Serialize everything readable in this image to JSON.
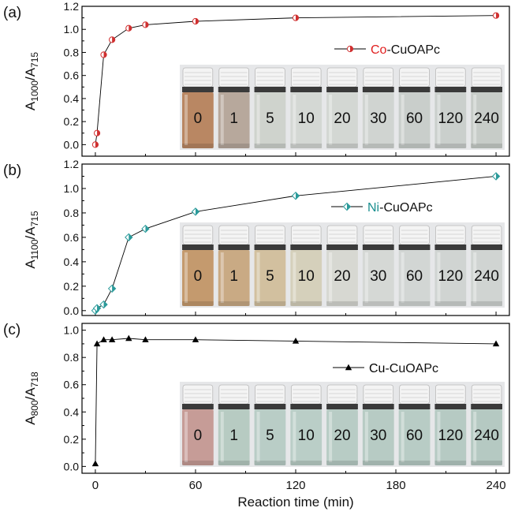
{
  "figure": {
    "xlabel": "Reaction time (min)",
    "x_ticks": [
      0,
      60,
      120,
      180,
      240
    ],
    "xlim": [
      -8,
      248
    ]
  },
  "chart_data": [
    {
      "type": "line",
      "panel_label": "(a)",
      "ylabel_main": "A",
      "ylabel_sub1": "1000",
      "ylabel_sep": "/A",
      "ylabel_sub2": "715",
      "ylim": [
        -0.1,
        1.2
      ],
      "y_ticks": [
        "0.0",
        "0.2",
        "0.4",
        "0.6",
        "0.8",
        "1.0",
        "1.2"
      ],
      "marker": "half-circle",
      "series": [
        {
          "legend_metal": "Co",
          "legend_rest": "-CuOAPc",
          "metal_color": "#e02020",
          "marker_color": "#d03030",
          "x": [
            0,
            1,
            5,
            10,
            20,
            30,
            60,
            120,
            240
          ],
          "y": [
            0.0,
            0.1,
            0.78,
            0.91,
            1.01,
            1.04,
            1.07,
            1.1,
            1.12
          ]
        }
      ],
      "vial_labels": [
        "0",
        "1",
        "5",
        "10",
        "20",
        "30",
        "60",
        "120",
        "240"
      ],
      "vial_colors": [
        "#b98763",
        "#b7a89c",
        "#cfd3cd",
        "#d4d8d4",
        "#d3d7d3",
        "#d0d4d1",
        "#c9cecb",
        "#cacfcc",
        "#c7ccc8"
      ]
    },
    {
      "type": "line",
      "panel_label": "(b)",
      "ylabel_main": "A",
      "ylabel_sub1": "1100",
      "ylabel_sep": "/A",
      "ylabel_sub2": "715",
      "ylim": [
        -0.04,
        1.2
      ],
      "y_ticks": [
        "0.0",
        "0.2",
        "0.4",
        "0.6",
        "0.8",
        "1.0",
        "1.2"
      ],
      "marker": "half-diamond",
      "series": [
        {
          "legend_metal": "Ni",
          "legend_rest": "-CuOAPc",
          "metal_color": "#1a8f8f",
          "marker_color": "#2a9a9a",
          "x": [
            0,
            1,
            5,
            10,
            20,
            30,
            60,
            120,
            240
          ],
          "y": [
            0.0,
            0.02,
            0.05,
            0.18,
            0.6,
            0.67,
            0.81,
            0.94,
            1.1
          ]
        }
      ],
      "vial_labels": [
        "0",
        "1",
        "5",
        "10",
        "20",
        "30",
        "60",
        "120",
        "240"
      ],
      "vial_colors": [
        "#c49a6e",
        "#c9aa84",
        "#d2c09f",
        "#d5d0bb",
        "#d7d8d2",
        "#d5d8d5",
        "#d2d6d4",
        "#d0d4d2",
        "#d0d4d2"
      ]
    },
    {
      "type": "line",
      "panel_label": "(c)",
      "ylabel_main": "A",
      "ylabel_sub1": "800",
      "ylabel_sep": "/A",
      "ylabel_sub2": "718",
      "ylim": [
        -0.05,
        1.05
      ],
      "y_ticks": [
        "0.0",
        "0.2",
        "0.4",
        "0.6",
        "0.8",
        "1.0"
      ],
      "marker": "triangle",
      "series": [
        {
          "legend_metal": "Cu",
          "legend_rest": "-CuOAPc",
          "metal_color": "#000000",
          "marker_color": "#000000",
          "x": [
            0,
            1,
            5,
            10,
            20,
            30,
            60,
            120,
            240
          ],
          "y": [
            0.02,
            0.9,
            0.93,
            0.93,
            0.94,
            0.93,
            0.93,
            0.92,
            0.9
          ]
        }
      ],
      "vial_labels": [
        "0",
        "1",
        "5",
        "10",
        "20",
        "30",
        "60",
        "120",
        "240"
      ],
      "vial_colors": [
        "#c69c97",
        "#b7cbc2",
        "#b9cdc6",
        "#bacec7",
        "#b8ccc5",
        "#b7cbc4",
        "#b8ccc5",
        "#b6cac3",
        "#b5c9c2"
      ]
    }
  ]
}
